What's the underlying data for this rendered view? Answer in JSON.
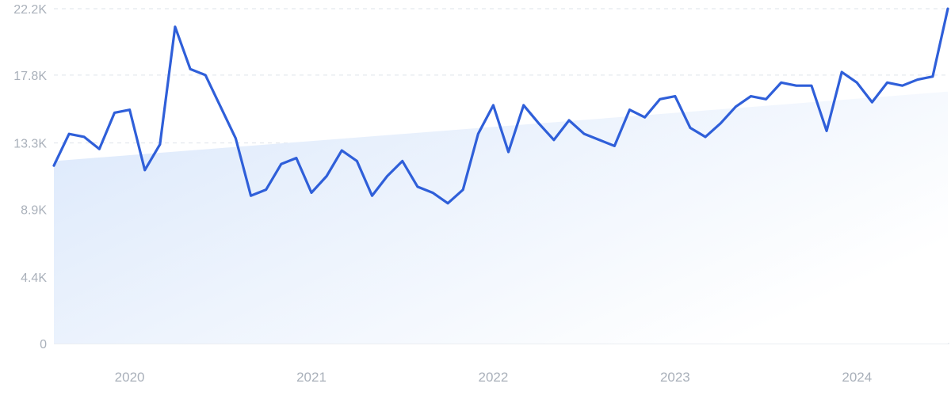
{
  "chart_data": {
    "type": "line",
    "title": "",
    "xlabel": "",
    "ylabel": "",
    "ylim": [
      0,
      22200
    ],
    "xlim": [
      "2019-09",
      "2024-08"
    ],
    "grid": true,
    "legend": "none",
    "y_ticks": [
      {
        "value": 0,
        "label": "0"
      },
      {
        "value": 4400,
        "label": "4.4K"
      },
      {
        "value": 8900,
        "label": "8.9K"
      },
      {
        "value": 13300,
        "label": "13.3K"
      },
      {
        "value": 17800,
        "label": "17.8K"
      },
      {
        "value": 22200,
        "label": "22.2K"
      }
    ],
    "x_ticks": [
      {
        "value": "2020-02",
        "label": "2020"
      },
      {
        "value": "2021-02",
        "label": "2021"
      },
      {
        "value": "2022-02",
        "label": "2022"
      },
      {
        "value": "2023-02",
        "label": "2023"
      },
      {
        "value": "2024-02",
        "label": "2024"
      }
    ],
    "series": [
      {
        "color": "#2f5fd9",
        "x": [
          "2019-09",
          "2019-10",
          "2019-11",
          "2019-12",
          "2020-01",
          "2020-02",
          "2020-03",
          "2020-04",
          "2020-05",
          "2020-06",
          "2020-07",
          "2020-08",
          "2020-09",
          "2020-10",
          "2020-11",
          "2020-12",
          "2021-01",
          "2021-02",
          "2021-03",
          "2021-04",
          "2021-05",
          "2021-06",
          "2021-07",
          "2021-08",
          "2021-09",
          "2021-10",
          "2021-11",
          "2021-12",
          "2022-01",
          "2022-02",
          "2022-03",
          "2022-04",
          "2022-05",
          "2022-06",
          "2022-07",
          "2022-08",
          "2022-09",
          "2022-10",
          "2022-11",
          "2022-12",
          "2023-01",
          "2023-02",
          "2023-03",
          "2023-04",
          "2023-05",
          "2023-06",
          "2023-07",
          "2023-08",
          "2023-09",
          "2023-10",
          "2023-11",
          "2023-12",
          "2024-01",
          "2024-02",
          "2024-03",
          "2024-04",
          "2024-05",
          "2024-06",
          "2024-07",
          "2024-08"
        ],
        "values": [
          11800,
          13900,
          13700,
          12900,
          15300,
          15500,
          11500,
          13200,
          21000,
          18200,
          17800,
          15700,
          13600,
          9800,
          10200,
          11900,
          12300,
          10000,
          11100,
          12800,
          12100,
          9800,
          11100,
          12100,
          10400,
          10000,
          9300,
          10200,
          13900,
          15800,
          12700,
          15800,
          14600,
          13500,
          14800,
          13900,
          13500,
          13100,
          15500,
          15000,
          16200,
          16400,
          14300,
          13700,
          14600,
          15700,
          16400,
          16200,
          17300,
          17100,
          17100,
          14100,
          18000,
          17300,
          16000,
          17300,
          17100,
          17500,
          17700,
          22200
        ]
      },
      {
        "name": "trend",
        "color": "#dce9fb",
        "x": [
          "2019-09",
          "2024-08"
        ],
        "values": [
          12100,
          16700
        ]
      }
    ]
  }
}
